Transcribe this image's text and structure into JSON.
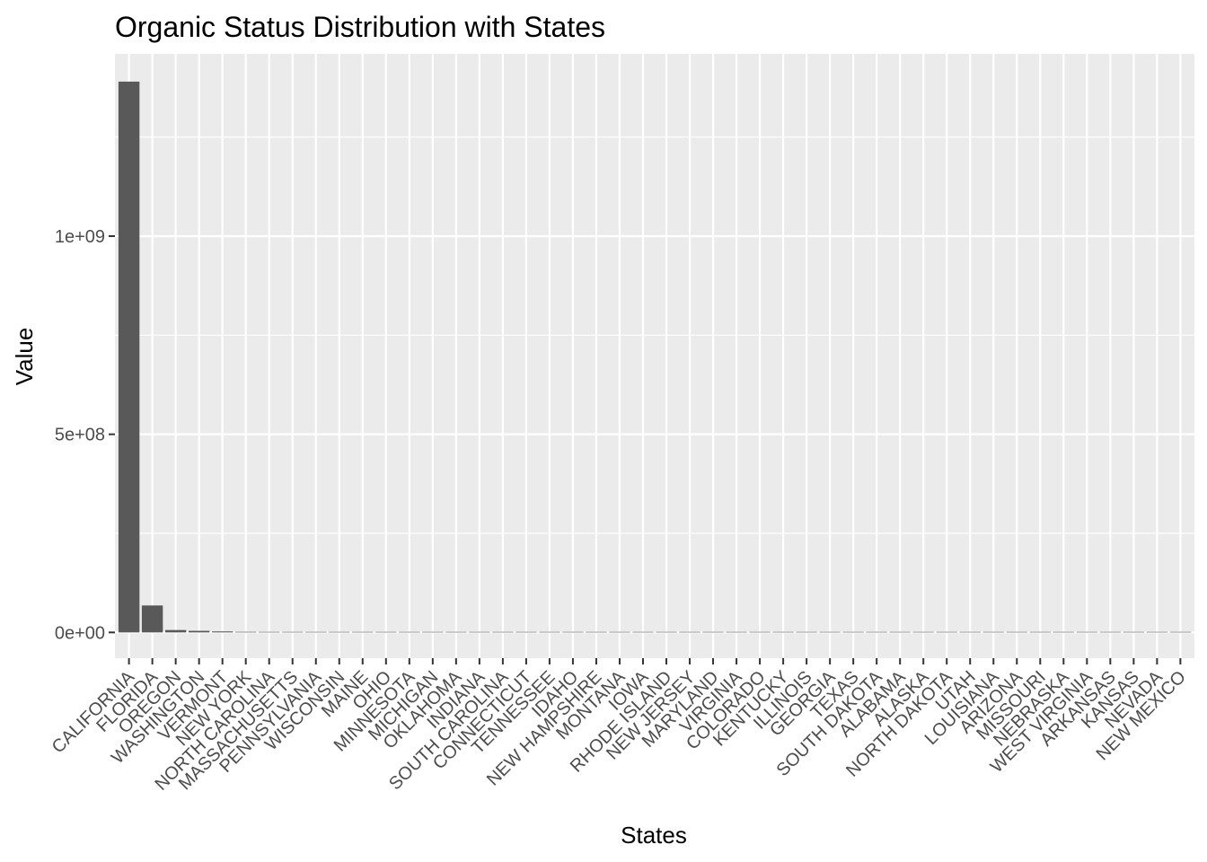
{
  "chart_data": {
    "type": "bar",
    "title": "Organic Status Distribution with States",
    "xlabel": "States",
    "ylabel": "Value",
    "ylim": [
      -65000000,
      1460000000
    ],
    "y_ticks": [
      0,
      500000000,
      1000000000
    ],
    "y_tick_labels": [
      "0e+00",
      "5e+08",
      "1e+09"
    ],
    "grid": true,
    "colors": {
      "bar": "#595959",
      "panel": "#ebebeb",
      "grid": "#ffffff"
    },
    "categories": [
      "CALIFORNIA",
      "FLORIDA",
      "OREGON",
      "WASHINGTON",
      "VERMONT",
      "NEW YORK",
      "NORTH CAROLINA",
      "MASSACHUSETTS",
      "PENNSYLVANIA",
      "WISCONSIN",
      "MAINE",
      "OHIO",
      "MINNESOTA",
      "MICHIGAN",
      "OKLAHOMA",
      "INDIANA",
      "SOUTH CAROLINA",
      "CONNECTICUT",
      "TENNESSEE",
      "IDAHO",
      "NEW HAMPSHIRE",
      "MONTANA",
      "IOWA",
      "RHODE ISLAND",
      "NEW JERSEY",
      "MARYLAND",
      "VIRGINIA",
      "COLORADO",
      "KENTUCKY",
      "ILLINOIS",
      "GEORGIA",
      "TEXAS",
      "SOUTH DAKOTA",
      "ALABAMA",
      "ALASKA",
      "NORTH DAKOTA",
      "UTAH",
      "LOUISIANA",
      "ARIZONA",
      "MISSOURI",
      "NEBRASKA",
      "WEST VIRGINIA",
      "ARKANSAS",
      "KANSAS",
      "NEVADA",
      "NEW MEXICO"
    ],
    "values": [
      1390000000,
      68000000,
      6000000,
      4000000,
      2500000,
      1500000,
      300000,
      200000,
      150000,
      100000,
      80000,
      60000,
      50000,
      40000,
      30000,
      25000,
      20000,
      18000,
      15000,
      12000,
      10000,
      9000,
      8000,
      7000,
      6000,
      5000,
      4500,
      4000,
      3500,
      3000,
      2500,
      2000,
      1800,
      1600,
      1400,
      1200,
      1000,
      900,
      800,
      700,
      600,
      500,
      400,
      300,
      200,
      100
    ]
  }
}
